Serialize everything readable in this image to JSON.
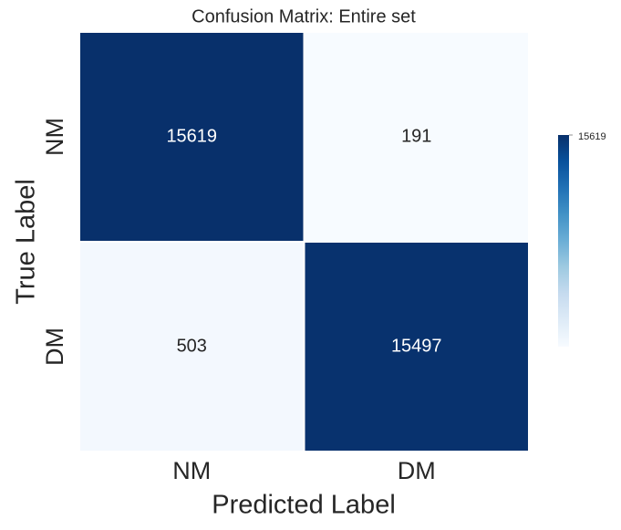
{
  "chart_data": {
    "type": "heatmap",
    "title": "Confusion Matrix: Entire set",
    "xlabel": "Predicted Label",
    "ylabel": "True Label",
    "x_categories": [
      "NM",
      "DM"
    ],
    "y_categories": [
      "NM",
      "DM"
    ],
    "values": [
      [
        15619,
        191
      ],
      [
        503,
        15497
      ]
    ],
    "colormap": "Blues",
    "clim": [
      191,
      15619
    ],
    "colorbar_ticks": [
      15619
    ]
  }
}
